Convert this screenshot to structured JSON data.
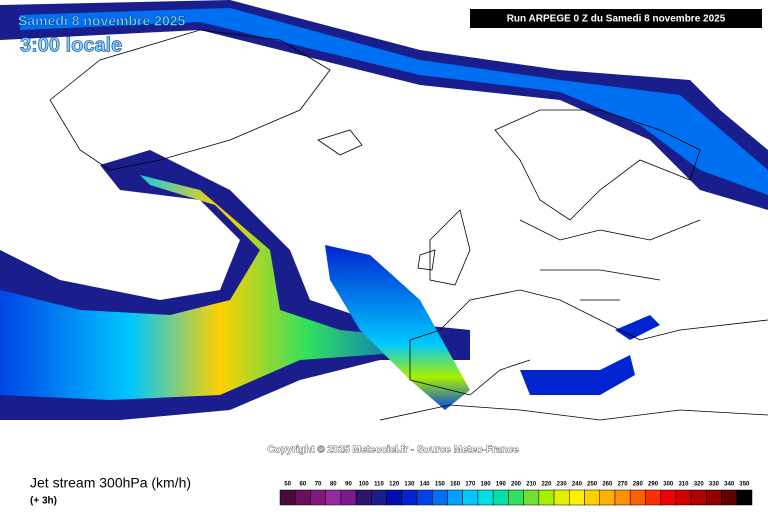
{
  "header": {
    "date": "Samedi 8 novembre 2025",
    "time": "3:00 locale",
    "run": "Run ARPEGE 0 Z du Samedi 8 novembre 2025"
  },
  "copyright": "Copyright © 2025 Meteociel.fr - Source Meteo-France",
  "footer": {
    "title": "Jet stream 300hPa (km/h)",
    "step": "(+ 3h)"
  },
  "legend": {
    "labels": [
      50,
      60,
      70,
      80,
      90,
      100,
      110,
      120,
      130,
      140,
      150,
      160,
      170,
      180,
      190,
      200,
      210,
      220,
      230,
      240,
      250,
      260,
      270,
      280,
      290,
      300,
      310,
      320,
      330,
      340,
      350
    ],
    "colors": [
      "#4b0a3c",
      "#6a0f5c",
      "#84187e",
      "#9a28a0",
      "#7a1a8e",
      "#2c1470",
      "#1a1e8c",
      "#0010b0",
      "#0024d0",
      "#0044e6",
      "#0070f2",
      "#00a0ff",
      "#00c8ff",
      "#00e0e0",
      "#00e0a8",
      "#30e060",
      "#70e030",
      "#a8f000",
      "#e0f000",
      "#fff000",
      "#ffd000",
      "#ffb000",
      "#ff9000",
      "#ff6000",
      "#ff3000",
      "#f00000",
      "#d00000",
      "#b00000",
      "#900000",
      "#600000",
      "#000000"
    ]
  }
}
